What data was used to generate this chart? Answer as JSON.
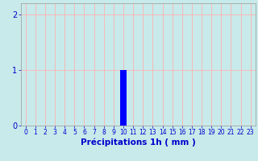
{
  "title": "",
  "xlabel": "Précipitations 1h ( mm )",
  "hours": [
    0,
    1,
    2,
    3,
    4,
    5,
    6,
    7,
    8,
    9,
    10,
    11,
    12,
    13,
    14,
    15,
    16,
    17,
    18,
    19,
    20,
    21,
    22,
    23
  ],
  "values": [
    0,
    0,
    0,
    0,
    0,
    0,
    0,
    0,
    0,
    0,
    1.0,
    0,
    0,
    0,
    0,
    0,
    0,
    0,
    0,
    0,
    0,
    0,
    0,
    0
  ],
  "bar_color": "#0000ff",
  "background_color": "#c8eaea",
  "grid_color": "#ffb0b0",
  "text_color": "#0000cc",
  "ylim": [
    0,
    2.2
  ],
  "xlim": [
    -0.5,
    23.5
  ],
  "yticks": [
    0,
    1,
    2
  ],
  "xtick_labels": [
    "0",
    "1",
    "2",
    "3",
    "4",
    "5",
    "6",
    "7",
    "8",
    "9",
    "10",
    "11",
    "12",
    "13",
    "14",
    "15",
    "16",
    "17",
    "18",
    "19",
    "20",
    "21",
    "22",
    "23"
  ],
  "xlabel_fontsize": 7.5,
  "tick_fontsize": 5.5,
  "ytick_fontsize": 7.0,
  "bar_width": 0.7
}
